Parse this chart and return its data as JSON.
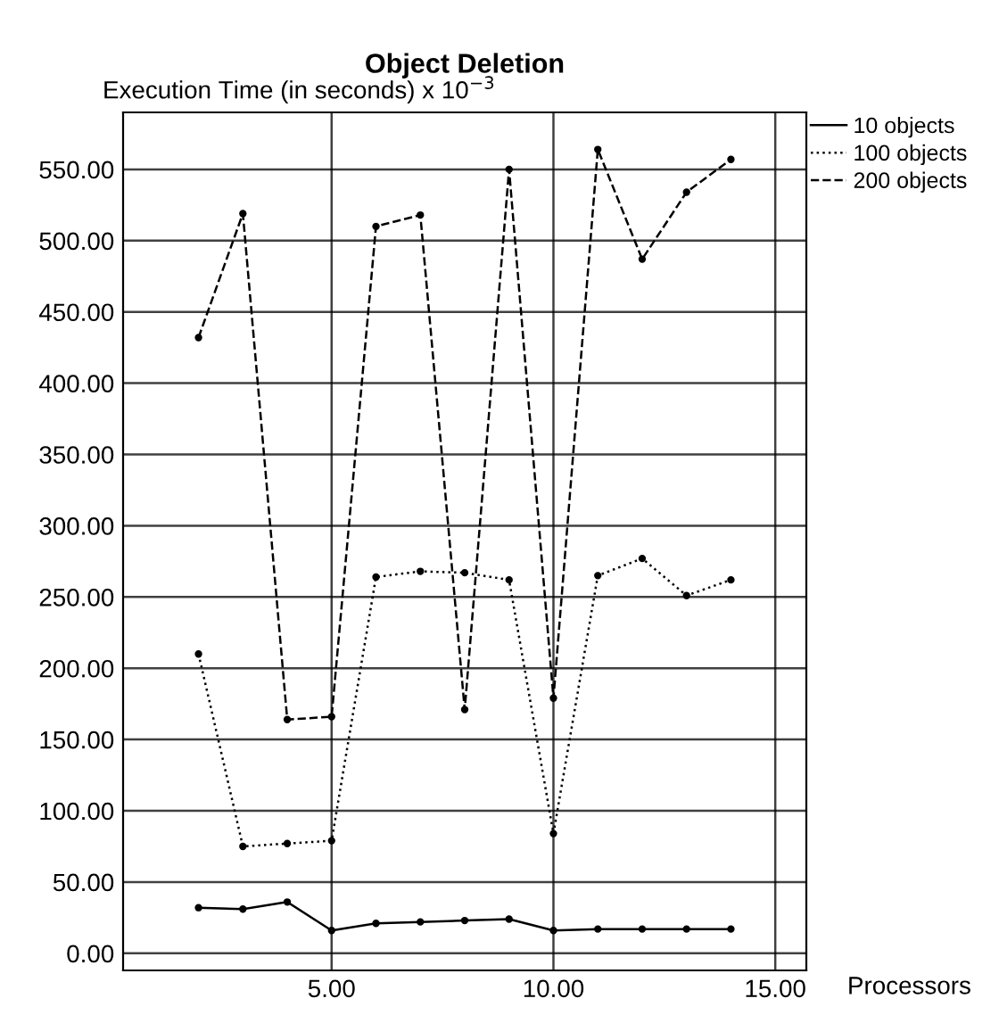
{
  "chart_data": {
    "type": "line",
    "title": "Object Deletion",
    "ylabel": "Execution Time (in seconds) x 10$^{−3}$",
    "xlabel": "Processors",
    "x": [
      2,
      3,
      4,
      5,
      6,
      7,
      8,
      9,
      10,
      11,
      12,
      13,
      14
    ],
    "series": [
      {
        "name": "10 objects",
        "color": "#000000",
        "line_style": "solid",
        "values": [
          32,
          31,
          36,
          16,
          21,
          22,
          23,
          24,
          16,
          17,
          17,
          17,
          17
        ]
      },
      {
        "name": "100 objects",
        "color": "#000000",
        "line_style": "dotted",
        "values": [
          210,
          75,
          77,
          79,
          264,
          268,
          267,
          262,
          84,
          265,
          277,
          251,
          262
        ]
      },
      {
        "name": "200 objects",
        "color": "#000000",
        "line_style": "dashed",
        "values": [
          432,
          519,
          164,
          166,
          510,
          518,
          171,
          550,
          179,
          564,
          487,
          534,
          557
        ]
      }
    ],
    "xlim": [
      0.3,
      15.7
    ],
    "ylim": [
      -12,
      590
    ],
    "xticks": [
      {
        "value": 5,
        "label": "5.00"
      },
      {
        "value": 10,
        "label": "10.00"
      },
      {
        "value": 15,
        "label": "15.00"
      }
    ],
    "yticks": [
      {
        "value": 0,
        "label": "0.00"
      },
      {
        "value": 50,
        "label": "50.00"
      },
      {
        "value": 100,
        "label": "100.00"
      },
      {
        "value": 150,
        "label": "150.00"
      },
      {
        "value": 200,
        "label": "200.00"
      },
      {
        "value": 250,
        "label": "250.00"
      },
      {
        "value": 300,
        "label": "300.00"
      },
      {
        "value": 350,
        "label": "350.00"
      },
      {
        "value": 400,
        "label": "400.00"
      },
      {
        "value": 450,
        "label": "450.00"
      },
      {
        "value": 500,
        "label": "500.00"
      },
      {
        "value": 550,
        "label": "550.00"
      }
    ],
    "grid": true,
    "legend": "top right",
    "marker": "circle"
  }
}
